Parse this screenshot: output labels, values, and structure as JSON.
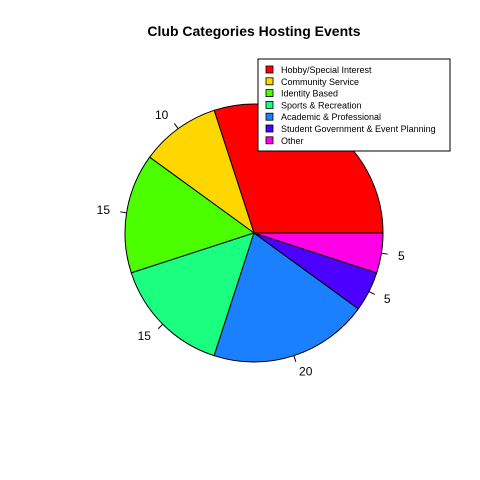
{
  "chart_data": {
    "type": "pie",
    "title": "Club Categories Hosting Events",
    "slices": [
      {
        "label": "Hobby/Special Interest",
        "value": 30,
        "color": "#ff0000",
        "value_label": ""
      },
      {
        "label": "Community Service",
        "value": 10,
        "color": "#ffd700",
        "value_label": "10"
      },
      {
        "label": "Identity Based",
        "value": 15,
        "color": "#4cff00",
        "value_label": "15"
      },
      {
        "label": "Sports & Recreation",
        "value": 15,
        "color": "#1aff80",
        "value_label": "15"
      },
      {
        "label": "Academic & Professional",
        "value": 20,
        "color": "#1a80ff",
        "value_label": "20"
      },
      {
        "label": "Student Government & Event Planning",
        "value": 5,
        "color": "#4c00ff",
        "value_label": "5"
      },
      {
        "label": "Other",
        "value": 5,
        "color": "#ff00e6",
        "value_label": "5"
      }
    ],
    "legend_position": "top-right",
    "start_angle_deg": 0,
    "direction": "counterclockwise"
  }
}
